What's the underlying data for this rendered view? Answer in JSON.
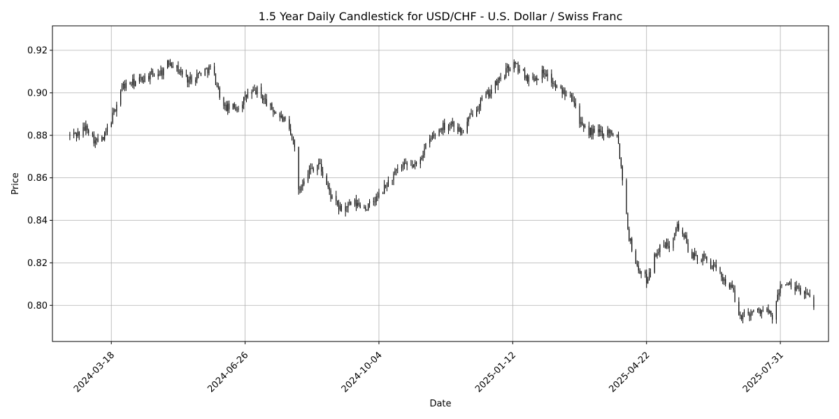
{
  "chart_data": {
    "type": "candlestick",
    "title": "1.5 Year Daily Candlestick for USD/CHF - U.S. Dollar / Swiss Franc",
    "xlabel": "Date",
    "ylabel": "Price",
    "x_range": [
      "2024-02-03",
      "2025-09-05"
    ],
    "ylim": [
      0.783,
      0.9315
    ],
    "x_ticks": [
      "2024-03-18",
      "2024-06-26",
      "2024-10-04",
      "2025-01-12",
      "2025-04-22",
      "2025-07-31"
    ],
    "y_ticks": [
      0.8,
      0.82,
      0.84,
      0.86,
      0.88,
      0.9,
      0.92
    ],
    "y_tick_labels": [
      "0.80",
      "0.82",
      "0.84",
      "0.86",
      "0.88",
      "0.90",
      "0.92"
    ],
    "grid": true,
    "legend": "none",
    "candle_color": "#000000",
    "date_start": "2024-02-16",
    "date_end": "2025-08-25",
    "close_anchors": [
      [
        "2024-02-16",
        0.88
      ],
      [
        "2024-02-23",
        0.881
      ],
      [
        "2024-02-29",
        0.884
      ],
      [
        "2024-03-06",
        0.877
      ],
      [
        "2024-03-12",
        0.878
      ],
      [
        "2024-03-19",
        0.889
      ],
      [
        "2024-03-26",
        0.903
      ],
      [
        "2024-04-05",
        0.905
      ],
      [
        "2024-04-15",
        0.908
      ],
      [
        "2024-04-25",
        0.91
      ],
      [
        "2024-05-01",
        0.915
      ],
      [
        "2024-05-05",
        0.912
      ],
      [
        "2024-05-15",
        0.906
      ],
      [
        "2024-05-25",
        0.91
      ],
      [
        "2024-06-01",
        0.912
      ],
      [
        "2024-06-10",
        0.893
      ],
      [
        "2024-06-20",
        0.893
      ],
      [
        "2024-06-28",
        0.899
      ],
      [
        "2024-07-05",
        0.901
      ],
      [
        "2024-07-15",
        0.893
      ],
      [
        "2024-07-25",
        0.887
      ],
      [
        "2024-08-02",
        0.876
      ],
      [
        "2024-08-05",
        0.853
      ],
      [
        "2024-08-10",
        0.862
      ],
      [
        "2024-08-20",
        0.867
      ],
      [
        "2024-08-30",
        0.85
      ],
      [
        "2024-09-05",
        0.845
      ],
      [
        "2024-09-15",
        0.848
      ],
      [
        "2024-09-25",
        0.846
      ],
      [
        "2024-10-05",
        0.852
      ],
      [
        "2024-10-10",
        0.857
      ],
      [
        "2024-10-20",
        0.865
      ],
      [
        "2024-11-01",
        0.866
      ],
      [
        "2024-11-10",
        0.877
      ],
      [
        "2024-11-20",
        0.884
      ],
      [
        "2024-11-28",
        0.886
      ],
      [
        "2024-12-05",
        0.881
      ],
      [
        "2024-12-15",
        0.893
      ],
      [
        "2024-12-28",
        0.902
      ],
      [
        "2025-01-12",
        0.914
      ],
      [
        "2025-01-25",
        0.906
      ],
      [
        "2025-02-05",
        0.91
      ],
      [
        "2025-02-15",
        0.901
      ],
      [
        "2025-02-25",
        0.9
      ],
      [
        "2025-03-05",
        0.883
      ],
      [
        "2025-03-15",
        0.881
      ],
      [
        "2025-03-25",
        0.882
      ],
      [
        "2025-03-31",
        0.881
      ],
      [
        "2025-04-04",
        0.86
      ],
      [
        "2025-04-09",
        0.832
      ],
      [
        "2025-04-15",
        0.818
      ],
      [
        "2025-04-22",
        0.812
      ],
      [
        "2025-04-30",
        0.826
      ],
      [
        "2025-05-10",
        0.829
      ],
      [
        "2025-05-14",
        0.838
      ],
      [
        "2025-05-20",
        0.833
      ],
      [
        "2025-05-25",
        0.823
      ],
      [
        "2025-06-05",
        0.822
      ],
      [
        "2025-06-15",
        0.815
      ],
      [
        "2025-06-25",
        0.808
      ],
      [
        "2025-06-30",
        0.795
      ],
      [
        "2025-07-10",
        0.797
      ],
      [
        "2025-07-20",
        0.798
      ],
      [
        "2025-07-25",
        0.794
      ],
      [
        "2025-08-01",
        0.811
      ],
      [
        "2025-08-10",
        0.808
      ],
      [
        "2025-08-18",
        0.806
      ],
      [
        "2025-08-25",
        0.801
      ]
    ]
  }
}
